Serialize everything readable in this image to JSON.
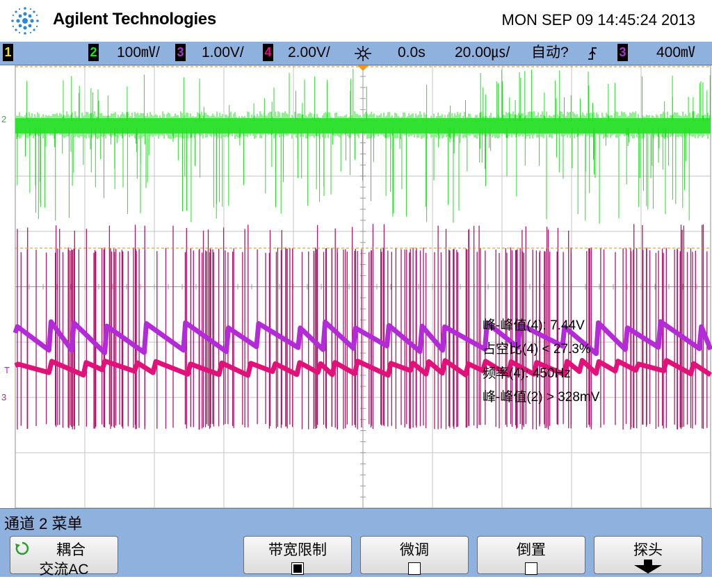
{
  "header": {
    "brand": "Agilent Technologies",
    "datetime": "MON SEP 09 14:45:24 2013"
  },
  "status_bar": {
    "ch1_label": "1",
    "ch2_label": "2",
    "ch2_scale": "100㎷/",
    "ch3_label": "3",
    "ch3_scale": "1.00V/",
    "ch4_label": "4",
    "ch4_scale": "2.00V/",
    "time_delay": "0.0s",
    "time_scale": "20.00㎲/",
    "trigger_mode": "自动?",
    "trigger_source": "3",
    "trigger_level": "400㎷",
    "colors": {
      "ch1": "#f2e600",
      "ch2": "#22e022",
      "ch3": "#b32bd6",
      "ch4": "#e0127a",
      "bar": "#8fb1de"
    }
  },
  "screen": {
    "marker_ch2": "2",
    "marker_trigger": "T",
    "marker_ch34": "3"
  },
  "measurements": {
    "line1": "峰-峰值(4): 7.44V",
    "line2": "占空比(4) < 27.3%",
    "line3": "频率(4): 450Hz",
    "line4": "峰-峰值(2) > 328mV"
  },
  "menu": {
    "title": "通道 2 菜单",
    "coupling_label": "耦合",
    "coupling_value": "交流AC",
    "bw_limit_label": "带宽限制",
    "bw_limit_on": true,
    "fine_label": "微调",
    "fine_on": false,
    "invert_label": "倒置",
    "invert_on": false,
    "probe_label": "探头"
  }
}
